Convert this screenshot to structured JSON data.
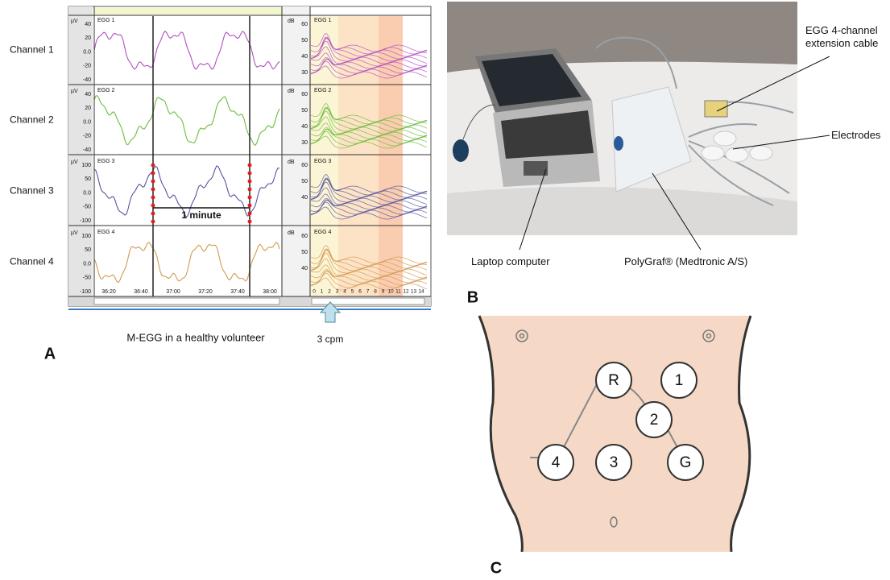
{
  "panel_a": {
    "label": "A",
    "caption": "M-EGG in a healthy volunteer",
    "arrow_label": "3 cpm",
    "interval_label": "1 minute",
    "channels": [
      {
        "label": "Channel 1",
        "trace_title": "EGG 1",
        "unit": "µV",
        "yticks": [
          "40",
          "20",
          "0.0",
          "-20",
          "-40"
        ],
        "spectrum_unit": "dB",
        "spectrum_yticks": [
          "60",
          "50",
          "40",
          "30"
        ]
      },
      {
        "label": "Channel 2",
        "trace_title": "EGG 2",
        "unit": "µV",
        "yticks": [
          "40",
          "20",
          "0.0",
          "-20",
          "-40"
        ],
        "spectrum_unit": "dB",
        "spectrum_yticks": [
          "60",
          "50",
          "40",
          "30"
        ]
      },
      {
        "label": "Channel 3",
        "trace_title": "EGG 3",
        "unit": "µV",
        "yticks": [
          "100",
          "50",
          "0.0",
          "-50",
          "-100"
        ],
        "spectrum_unit": "dB",
        "spectrum_yticks": [
          "60",
          "50",
          "40"
        ]
      },
      {
        "label": "Channel 4",
        "trace_title": "EGG 4",
        "unit": "µV",
        "yticks": [
          "100",
          "50",
          "0.0",
          "-50",
          "-100"
        ],
        "spectrum_unit": "dB",
        "spectrum_yticks": [
          "60",
          "50",
          "40"
        ]
      }
    ],
    "time_ticks": [
      "36:20",
      "36:40",
      "37:00",
      "37:20",
      "37:40",
      "38:00"
    ],
    "frequency_ticks": [
      "0",
      "1",
      "2",
      "3",
      "4",
      "5",
      "6",
      "7",
      "8",
      "9",
      "10",
      "11",
      "12",
      "13",
      "14"
    ]
  },
  "panel_b": {
    "label": "B",
    "callouts": {
      "cable": "EGG 4-channel extension cable",
      "electrodes": "Electrodes",
      "laptop": "Laptop computer",
      "device": "PolyGraf® (Medtronic A/S)"
    }
  },
  "panel_c": {
    "label": "C",
    "electrodes": [
      "R",
      "1",
      "2",
      "4",
      "3",
      "G"
    ]
  }
}
